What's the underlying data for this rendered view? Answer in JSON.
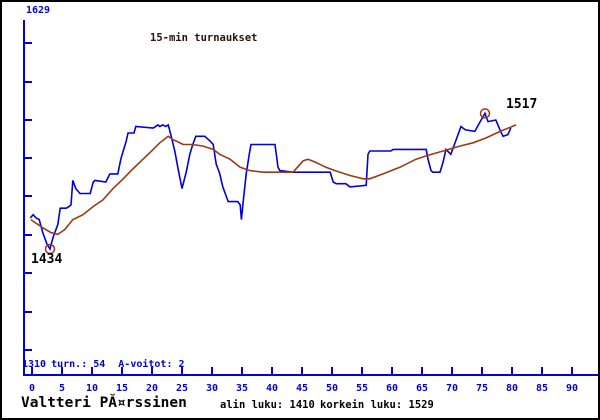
{
  "title": "15-min turnaukset",
  "colors": {
    "axis": "#0000e0",
    "rating_line": "#0000e0",
    "average_line": "#9a3b16",
    "marker_circle": "#9a3b16",
    "annotation_text": "#000000",
    "title_text": "#2a1208",
    "footer_text": "#000000",
    "background": "#ffffff",
    "border": "#000000"
  },
  "y_axis": {
    "top_label": "1629",
    "bottom_label": "1310"
  },
  "x_axis": {
    "tick_labels": [
      "0",
      "5",
      "10",
      "15",
      "20",
      "25",
      "30",
      "35",
      "40",
      "45",
      "50",
      "55",
      "60",
      "65",
      "70",
      "75",
      "80",
      "85",
      "90"
    ]
  },
  "stats_line": {
    "tournaments": "turn.: 54",
    "a_wins": "A-voitot: 2"
  },
  "footer": {
    "player": "Valtteri PĂ¤rssinen",
    "min_label": "alin luku: 1410",
    "max_label": "korkein luku: 1529"
  },
  "annotations": [
    {
      "label": "1434",
      "t": 3,
      "rating": 1434
    },
    {
      "label": "1517",
      "t": 75.5,
      "rating": 1517
    }
  ],
  "chart_data": {
    "type": "line",
    "title": "15-min turnaukset",
    "x_ticks": [
      0,
      5,
      10,
      15,
      20,
      25,
      30,
      35,
      40,
      45,
      50,
      55,
      60,
      65,
      70,
      75,
      80,
      85,
      90
    ],
    "y_end_labels": [
      1310,
      1629
    ],
    "lowest_rating": 1410,
    "highest_rating": 1529,
    "tournaments_played": 54,
    "a_wins": 2,
    "legend_position": "none",
    "grid": false,
    "markers": [
      {
        "t": 3,
        "rating": 1434
      },
      {
        "t": 75.5,
        "rating": 1517
      }
    ],
    "series": [
      {
        "name": "rating",
        "color": "#0000e0",
        "points": [
          [
            -0.3,
            1453
          ],
          [
            0.2,
            1455
          ],
          [
            0.7,
            1453
          ],
          [
            1.2,
            1452
          ],
          [
            1.8,
            1444
          ],
          [
            2.5,
            1437
          ],
          [
            3,
            1434
          ],
          [
            3.5,
            1441
          ],
          [
            4,
            1446
          ],
          [
            4.3,
            1449
          ],
          [
            4.7,
            1459
          ],
          [
            5.7,
            1459
          ],
          [
            6.2,
            1460
          ],
          [
            6.5,
            1461
          ],
          [
            6.8,
            1476
          ],
          [
            7.3,
            1471
          ],
          [
            8,
            1468
          ],
          [
            9.7,
            1468
          ],
          [
            10.2,
            1475
          ],
          [
            10.5,
            1476
          ],
          [
            12.3,
            1475
          ],
          [
            12.7,
            1478
          ],
          [
            13,
            1480
          ],
          [
            14.3,
            1480
          ],
          [
            14.8,
            1489
          ],
          [
            15.2,
            1494
          ],
          [
            15.7,
            1500
          ],
          [
            16,
            1505
          ],
          [
            17,
            1505
          ],
          [
            17.3,
            1509
          ],
          [
            20.2,
            1508
          ],
          [
            21,
            1510
          ],
          [
            21.3,
            1509
          ],
          [
            21.8,
            1510
          ],
          [
            22.3,
            1509
          ],
          [
            22.7,
            1510
          ],
          [
            23,
            1506
          ],
          [
            23.8,
            1494
          ],
          [
            24.3,
            1484
          ],
          [
            25,
            1471
          ],
          [
            25.7,
            1481
          ],
          [
            26.3,
            1492
          ],
          [
            26.8,
            1498
          ],
          [
            27.3,
            1503
          ],
          [
            28,
            1503
          ],
          [
            28.8,
            1503
          ],
          [
            29.7,
            1500
          ],
          [
            30.2,
            1498
          ],
          [
            30.7,
            1486
          ],
          [
            31.3,
            1480
          ],
          [
            31.8,
            1472
          ],
          [
            32.7,
            1463
          ],
          [
            34.3,
            1463
          ],
          [
            34.7,
            1461
          ],
          [
            34.9,
            1452
          ],
          [
            35.2,
            1463
          ],
          [
            35.7,
            1480
          ],
          [
            36,
            1487
          ],
          [
            36.3,
            1494
          ],
          [
            36.5,
            1498
          ],
          [
            36.8,
            1498
          ],
          [
            40.5,
            1498
          ],
          [
            41,
            1484
          ],
          [
            41.3,
            1482
          ],
          [
            43.5,
            1481
          ],
          [
            49.7,
            1481
          ],
          [
            50.2,
            1475
          ],
          [
            50.7,
            1474
          ],
          [
            52.3,
            1474
          ],
          [
            53,
            1472
          ],
          [
            55.7,
            1473
          ],
          [
            56,
            1492
          ],
          [
            56.3,
            1494
          ],
          [
            59.8,
            1494
          ],
          [
            60.2,
            1495
          ],
          [
            65.7,
            1495
          ],
          [
            66,
            1489
          ],
          [
            66.5,
            1482
          ],
          [
            66.8,
            1481
          ],
          [
            68,
            1481
          ],
          [
            68.5,
            1487
          ],
          [
            69,
            1495
          ],
          [
            69.8,
            1492
          ],
          [
            70.7,
            1501
          ],
          [
            71.5,
            1509
          ],
          [
            72.2,
            1507
          ],
          [
            73.8,
            1506
          ],
          [
            74.7,
            1512
          ],
          [
            75.5,
            1517
          ],
          [
            76,
            1512
          ],
          [
            77.3,
            1513
          ],
          [
            78,
            1507
          ],
          [
            78.5,
            1503
          ],
          [
            79.3,
            1504
          ],
          [
            79.8,
            1508
          ]
        ]
      },
      {
        "name": "average",
        "color": "#9a3b16",
        "points": [
          [
            -0.2,
            1452
          ],
          [
            1.8,
            1447
          ],
          [
            3.2,
            1444
          ],
          [
            4.3,
            1443
          ],
          [
            5.5,
            1446
          ],
          [
            6.8,
            1452
          ],
          [
            8.5,
            1455
          ],
          [
            10.2,
            1460
          ],
          [
            11.8,
            1464
          ],
          [
            13.5,
            1471
          ],
          [
            15.2,
            1477
          ],
          [
            16.8,
            1483
          ],
          [
            18.5,
            1489
          ],
          [
            20.2,
            1495
          ],
          [
            21.3,
            1499
          ],
          [
            22.7,
            1503
          ],
          [
            23.5,
            1501
          ],
          [
            25.2,
            1498
          ],
          [
            26.8,
            1498
          ],
          [
            28.5,
            1497
          ],
          [
            30.2,
            1495
          ],
          [
            31.3,
            1492
          ],
          [
            33,
            1489
          ],
          [
            34.7,
            1484
          ],
          [
            36.3,
            1482
          ],
          [
            38.5,
            1481
          ],
          [
            43.5,
            1481
          ],
          [
            45.2,
            1488
          ],
          [
            46,
            1489
          ],
          [
            47.3,
            1487
          ],
          [
            49,
            1484
          ],
          [
            50.5,
            1482
          ],
          [
            53,
            1479
          ],
          [
            55.2,
            1477
          ],
          [
            56.3,
            1477
          ],
          [
            58.5,
            1480
          ],
          [
            61.3,
            1484
          ],
          [
            64,
            1489
          ],
          [
            65.7,
            1491
          ],
          [
            68.5,
            1494
          ],
          [
            71.3,
            1497
          ],
          [
            73.5,
            1499
          ],
          [
            75.7,
            1502
          ],
          [
            78,
            1506
          ],
          [
            80.7,
            1510
          ]
        ]
      }
    ]
  }
}
